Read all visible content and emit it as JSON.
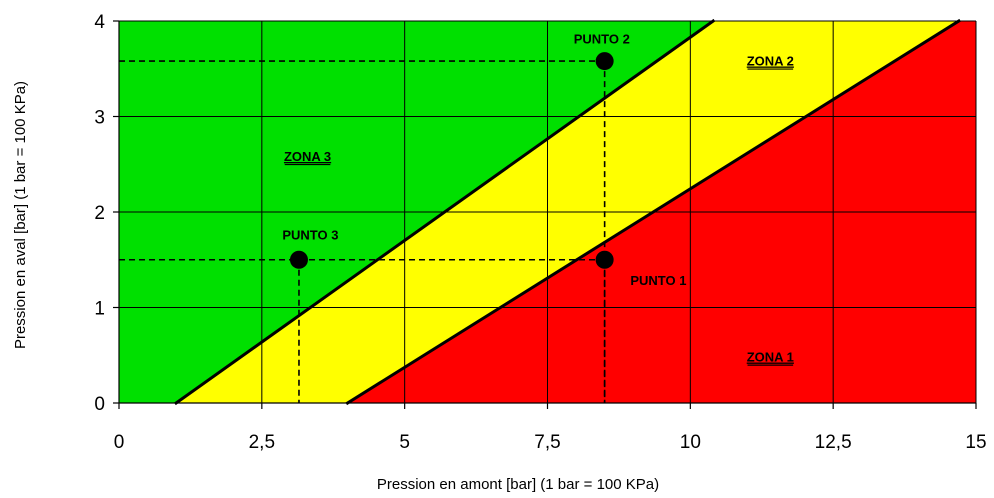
{
  "chart_data": {
    "type": "scatter",
    "xlabel": "Pression en amont [bar] (1 bar = 100 KPa)",
    "ylabel": "Pression en aval [bar] (1 bar = 100 KPa)",
    "xlim": [
      0,
      15
    ],
    "ylim": [
      0,
      4
    ],
    "x_ticks": [
      "0",
      "2,5",
      "5",
      "7,5",
      "10",
      "12,5",
      "15"
    ],
    "y_ticks": [
      "0",
      "1",
      "2",
      "3",
      "4"
    ],
    "grid": true,
    "boundaries": [
      {
        "x1": 1.0,
        "y1": 0,
        "x2": 10.4,
        "y2": 4
      },
      {
        "x1": 4.0,
        "y1": 0,
        "x2": 14.7,
        "y2": 4
      }
    ],
    "zones": [
      {
        "label": "ZONA 1",
        "color": "#ff0000",
        "label_x": 11.4,
        "label_y": 0.47
      },
      {
        "label": "ZONA 2",
        "color": "#ffff00",
        "label_x": 11.4,
        "label_y": 3.57
      },
      {
        "label": "ZONA 3",
        "color": "#00e000",
        "label_x": 3.3,
        "label_y": 2.57
      }
    ],
    "points": [
      {
        "label": "PUNTO 1",
        "x": 8.5,
        "y": 1.5,
        "label_x": 8.95,
        "label_y": 1.27,
        "anchor": "start"
      },
      {
        "label": "PUNTO 2",
        "x": 8.5,
        "y": 3.58,
        "label_x": 8.45,
        "label_y": 3.8,
        "anchor": "middle"
      },
      {
        "label": "PUNTO 3",
        "x": 3.15,
        "y": 1.5,
        "label_x": 3.35,
        "label_y": 1.75,
        "anchor": "middle"
      }
    ]
  }
}
